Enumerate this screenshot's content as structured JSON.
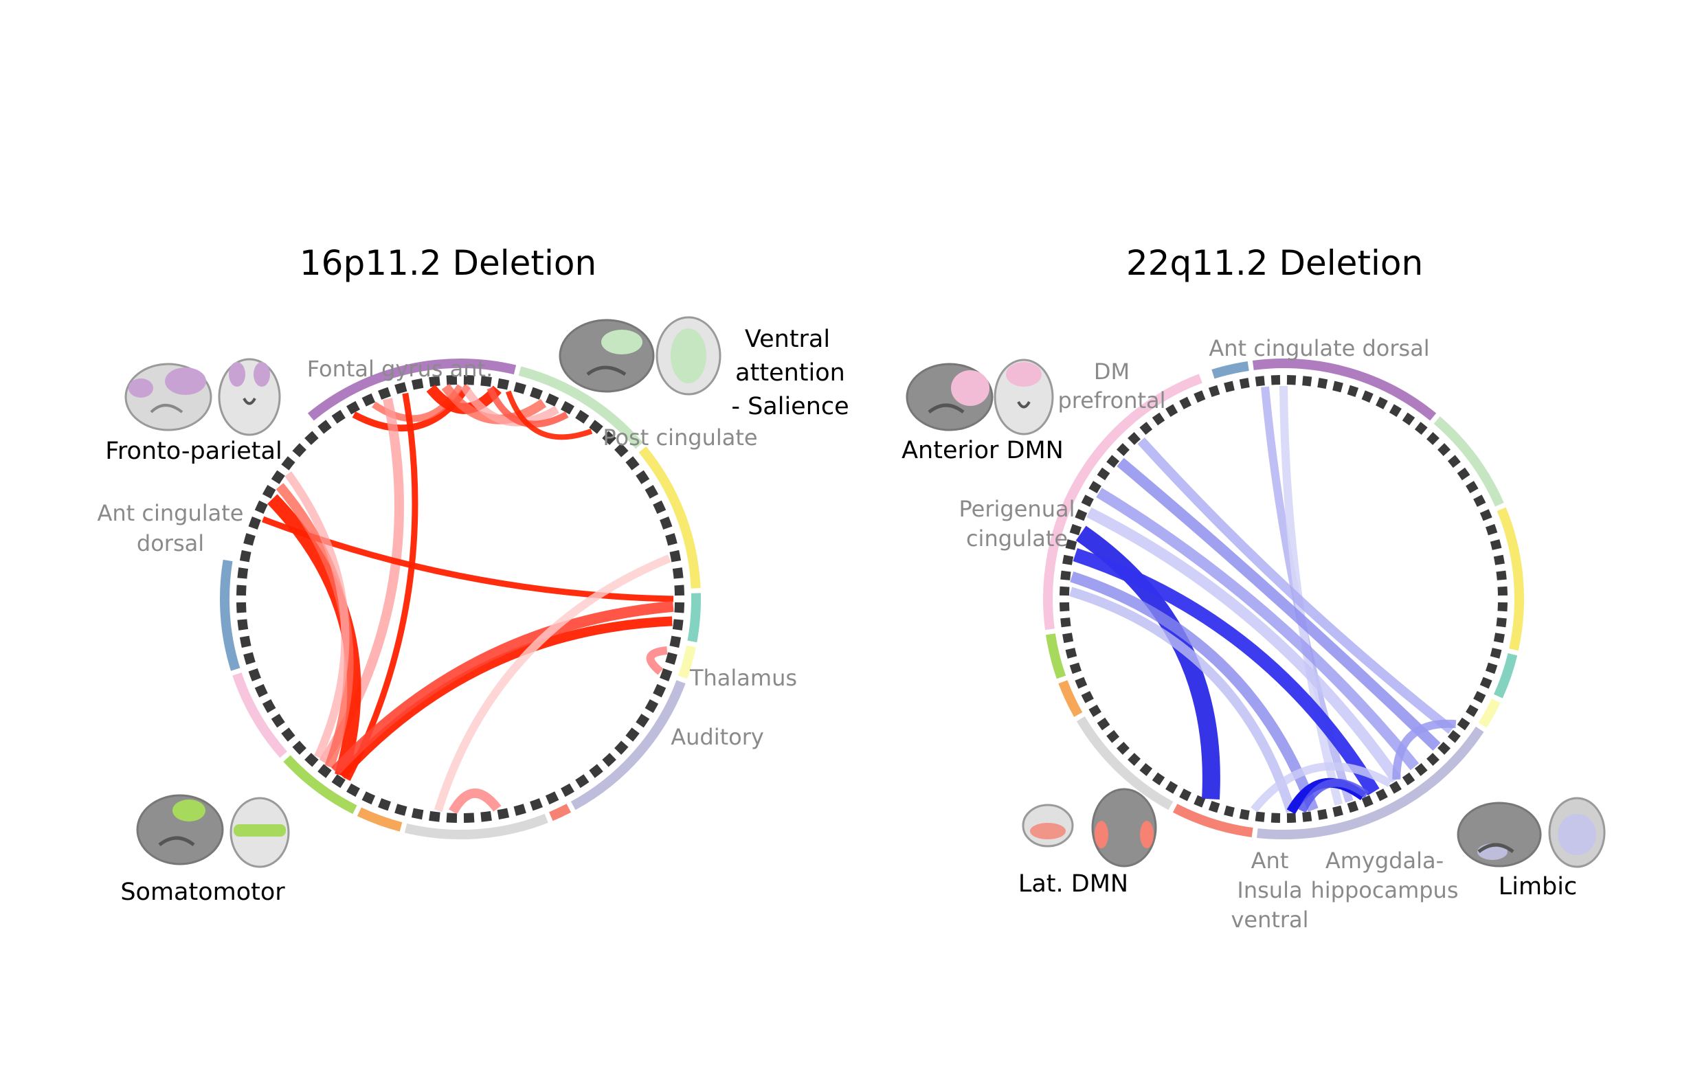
{
  "panels": [
    {
      "title": "16p11.2 Deletion",
      "region_labels": [
        "Fontal gyrus ant.",
        "Post cingulate",
        "Ant cingulate",
        "dorsal",
        "Thalamus",
        "Auditory"
      ],
      "network_labels": [
        "Fronto-parietal",
        "Ventral",
        "attention",
        "- Salience",
        "Somatomotor"
      ],
      "network_segments": [
        {
          "network": "fronto-parietal",
          "color": "#b07cc0",
          "start_deg": -40,
          "end_deg": 14
        },
        {
          "network": "ventral-attention",
          "color": "#c6e6c2",
          "start_deg": 14,
          "end_deg": 50
        },
        {
          "network": "yellow",
          "color": "#f7ea6e",
          "start_deg": 50,
          "end_deg": 88
        },
        {
          "network": "thalamus",
          "color": "#84d3c0",
          "start_deg": 88,
          "end_deg": 101
        },
        {
          "network": "auditory",
          "color": "#fafab0",
          "start_deg": 101,
          "end_deg": 110
        },
        {
          "network": "limbic",
          "color": "#bebedc",
          "start_deg": 110,
          "end_deg": 152
        },
        {
          "network": "lat-dmn",
          "color": "#f58272",
          "start_deg": 152,
          "end_deg": 158
        },
        {
          "network": "gray",
          "color": "#d9d9d9",
          "start_deg": 158,
          "end_deg": 194
        },
        {
          "network": "orange",
          "color": "#f7a758",
          "start_deg": 194,
          "end_deg": 206
        },
        {
          "network": "somatomotor",
          "color": "#a6d95c",
          "start_deg": 206,
          "end_deg": 228
        },
        {
          "network": "pink",
          "color": "#f7c6de",
          "start_deg": 228,
          "end_deg": 252
        },
        {
          "network": "blue",
          "color": "#7ba4c8",
          "start_deg": 252,
          "end_deg": 280
        }
      ],
      "chords": [
        {
          "from_deg": -30,
          "to_deg": 2,
          "color": "#ff2200",
          "width": 10,
          "opacity": 0.95
        },
        {
          "from_deg": -24,
          "to_deg": 0,
          "color": "#ff6655",
          "width": 10,
          "opacity": 0.8
        },
        {
          "from_deg": -15,
          "to_deg": 212,
          "color": "#ff2200",
          "width": 9,
          "opacity": 0.95
        },
        {
          "from_deg": -8,
          "to_deg": 10,
          "color": "#ff2200",
          "width": 16,
          "opacity": 0.95
        },
        {
          "from_deg": -4,
          "to_deg": 23,
          "color": "#ff6655",
          "width": 14,
          "opacity": 0.8
        },
        {
          "from_deg": 1,
          "to_deg": 27,
          "color": "#ffaaaa",
          "width": 12,
          "opacity": 0.75
        },
        {
          "from_deg": 8,
          "to_deg": 30,
          "color": "#ff5544",
          "width": 10,
          "opacity": 0.85
        },
        {
          "from_deg": 13,
          "to_deg": 38,
          "color": "#ff2200",
          "width": 8,
          "opacity": 0.9
        },
        {
          "from_deg": -20,
          "to_deg": 220,
          "color": "#ff9999",
          "width": 14,
          "opacity": 0.75
        },
        {
          "from_deg": 292,
          "to_deg": 90,
          "color": "#ff2200",
          "width": 9,
          "opacity": 0.95
        },
        {
          "from_deg": 298,
          "to_deg": 214,
          "color": "#ff2200",
          "width": 20,
          "opacity": 0.95
        },
        {
          "from_deg": 302,
          "to_deg": 218,
          "color": "#ff6655",
          "width": 14,
          "opacity": 0.8
        },
        {
          "from_deg": 306,
          "to_deg": 222,
          "color": "#ffaaaa",
          "width": 12,
          "opacity": 0.7
        },
        {
          "from_deg": 214,
          "to_deg": 96,
          "color": "#ff2200",
          "width": 14,
          "opacity": 0.95
        },
        {
          "from_deg": 216,
          "to_deg": 92,
          "color": "#ff4433",
          "width": 16,
          "opacity": 0.9
        },
        {
          "from_deg": 186,
          "to_deg": 79,
          "color": "#ffcccc",
          "width": 12,
          "opacity": 0.8
        },
        {
          "from_deg": 170,
          "to_deg": 182,
          "color": "#ff8888",
          "width": 14,
          "opacity": 0.85
        },
        {
          "from_deg": 104,
          "to_deg": 110,
          "color": "#ff7777",
          "width": 12,
          "opacity": 0.8
        }
      ]
    },
    {
      "title": "22q11.2 Deletion",
      "region_labels": [
        "Ant cingulate dorsal",
        "DM",
        "prefrontal",
        "Perigenual",
        "cingulate",
        "Ant",
        "Insula",
        "ventral",
        "Amygdala-",
        "hippocampus"
      ],
      "network_labels": [
        "Anterior DMN",
        "Lat. DMN",
        "Limbic"
      ],
      "network_segments": [
        {
          "network": "blue",
          "color": "#7ba4c8",
          "start_deg": -18,
          "end_deg": -8
        },
        {
          "network": "fronto-parietal",
          "color": "#b07cc0",
          "start_deg": -8,
          "end_deg": 40
        },
        {
          "network": "ventral-attention",
          "color": "#c6e6c2",
          "start_deg": 40,
          "end_deg": 67
        },
        {
          "network": "yellow",
          "color": "#f7ea6e",
          "start_deg": 67,
          "end_deg": 103
        },
        {
          "network": "thalamus",
          "color": "#84d3c0",
          "start_deg": 103,
          "end_deg": 115
        },
        {
          "network": "auditory",
          "color": "#fafab0",
          "start_deg": 115,
          "end_deg": 123
        },
        {
          "network": "limbic",
          "color": "#bebedc",
          "start_deg": 123,
          "end_deg": 187
        },
        {
          "network": "lat-dmn",
          "color": "#f58272",
          "start_deg": 187,
          "end_deg": 208
        },
        {
          "network": "gray",
          "color": "#d9d9d9",
          "start_deg": 208,
          "end_deg": 240
        },
        {
          "network": "orange",
          "color": "#f7a758",
          "start_deg": 240,
          "end_deg": 250
        },
        {
          "network": "somatomotor",
          "color": "#a6d95c",
          "start_deg": 250,
          "end_deg": 262
        },
        {
          "network": "anterior-dmn",
          "color": "#f7c6de",
          "start_deg": 262,
          "end_deg": 340
        }
      ],
      "chords": [
        {
          "from_deg": -5,
          "to_deg": 162,
          "color": "#b8b8f4",
          "width": 12,
          "opacity": 0.9
        },
        {
          "from_deg": 0,
          "to_deg": 165,
          "color": "#d6d6f8",
          "width": 12,
          "opacity": 0.9
        },
        {
          "from_deg": 310,
          "to_deg": 134,
          "color": "#8888ee",
          "width": 16,
          "opacity": 0.8
        },
        {
          "from_deg": 318,
          "to_deg": 128,
          "color": "#aaaaf2",
          "width": 14,
          "opacity": 0.8
        },
        {
          "from_deg": 300,
          "to_deg": 142,
          "color": "#9999f0",
          "width": 16,
          "opacity": 0.8
        },
        {
          "from_deg": 294,
          "to_deg": 148,
          "color": "#c4c4f6",
          "width": 16,
          "opacity": 0.8
        },
        {
          "from_deg": 288,
          "to_deg": 200,
          "color": "#2a2ae6",
          "width": 26,
          "opacity": 0.95
        },
        {
          "from_deg": 282,
          "to_deg": 155,
          "color": "#3333ee",
          "width": 20,
          "opacity": 0.95
        },
        {
          "from_deg": 276,
          "to_deg": 172,
          "color": "#8888ee",
          "width": 16,
          "opacity": 0.8
        },
        {
          "from_deg": 272,
          "to_deg": 178,
          "color": "#bbbbf4",
          "width": 14,
          "opacity": 0.8
        },
        {
          "from_deg": 178,
          "to_deg": 158,
          "color": "#1414e6",
          "width": 14,
          "opacity": 1.0
        },
        {
          "from_deg": 175,
          "to_deg": 157,
          "color": "#5555ee",
          "width": 12,
          "opacity": 0.85
        },
        {
          "from_deg": 148,
          "to_deg": 126,
          "color": "#9999f0",
          "width": 12,
          "opacity": 0.85
        },
        {
          "from_deg": 188,
          "to_deg": 150,
          "color": "#ccccf6",
          "width": 12,
          "opacity": 0.8
        }
      ]
    }
  ]
}
